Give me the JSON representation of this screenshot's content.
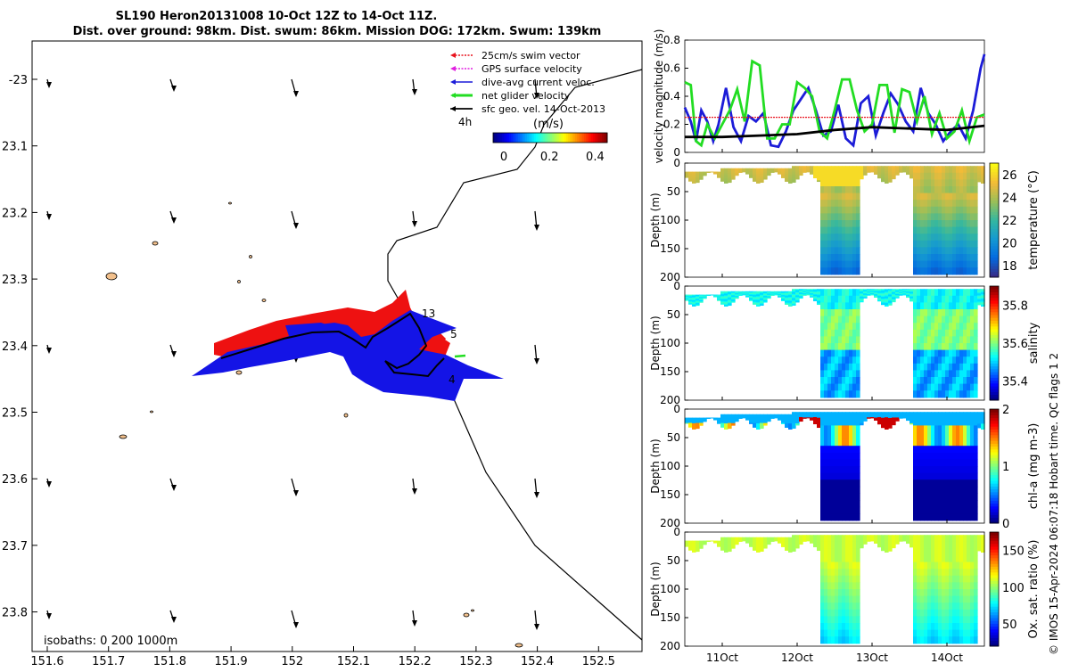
{
  "title_lines": [
    "SL190 Heron20131008 10-Oct 12Z to 14-Oct 11Z.",
    "Dist. over ground: 98km. Dist. swum: 86km. Mission DOG: 172km. Swum: 139km"
  ],
  "side_label": "© IMOS 15-Apr-2024 06:07:18 Hobart time. QC flags 1  2",
  "map": {
    "x_ticks": [
      "151.6",
      "151.7",
      "151.8",
      "151.9",
      "152",
      "152.1",
      "152.2",
      "152.3",
      "152.4",
      "152.5"
    ],
    "y_ticks": [
      "-23",
      "23.1",
      "23.2",
      "23.3",
      "23.4",
      "23.5",
      "23.6",
      "23.7",
      "23.8"
    ],
    "isobath_label": "isobaths: 0   200  1000m",
    "track_day_labels": [
      "13",
      "5",
      "4"
    ],
    "legend": [
      {
        "label": "25cm/s swim vector",
        "color": "#e8141e"
      },
      {
        "label": "GPS surface velocity",
        "color": "#e020e0"
      },
      {
        "label": "dive-avg current veloc.",
        "color": "#1c1cd8"
      },
      {
        "label": "net glider velocity",
        "color": "#22dd22"
      },
      {
        "label": "sfc geo. vel. 14-Oct-2013",
        "color": "#000000"
      }
    ],
    "scale_arrow_label": "4h",
    "colorbar": {
      "label": "(m/s)",
      "ticks": [
        "0",
        "0.2",
        "0.4"
      ],
      "range": [
        0,
        0.5
      ]
    }
  },
  "chart_data": [
    {
      "type": "line",
      "title": "",
      "xlabel": "",
      "ylabel": "velocity magnitude (m/s)",
      "ylim": [
        0,
        0.8
      ],
      "y_ticks": [
        "0",
        "0.2",
        "0.4",
        "0.6",
        "0.8"
      ],
      "x_tick_labels": [
        "11Oct",
        "12Oct",
        "13Oct",
        "14Oct"
      ],
      "xlim_days": [
        10.5,
        14.5
      ],
      "series": [
        {
          "color": "#1c1cd8",
          "x": [
            10.5,
            10.58,
            10.65,
            10.72,
            10.8,
            10.88,
            10.95,
            11.05,
            11.15,
            11.25,
            11.35,
            11.45,
            11.55,
            11.65,
            11.75,
            11.85,
            11.95,
            12.05,
            12.15,
            12.25,
            12.35,
            12.45,
            12.55,
            12.65,
            12.75,
            12.85,
            12.95,
            13.05,
            13.15,
            13.25,
            13.35,
            13.45,
            13.55,
            13.65,
            13.75,
            13.85,
            13.95,
            14.05,
            14.15,
            14.25,
            14.35,
            14.45,
            14.5
          ],
          "y": [
            0.32,
            0.22,
            0.08,
            0.3,
            0.22,
            0.08,
            0.2,
            0.46,
            0.18,
            0.08,
            0.26,
            0.22,
            0.28,
            0.05,
            0.04,
            0.15,
            0.3,
            0.38,
            0.46,
            0.3,
            0.12,
            0.15,
            0.34,
            0.1,
            0.05,
            0.35,
            0.4,
            0.12,
            0.28,
            0.42,
            0.34,
            0.22,
            0.15,
            0.46,
            0.28,
            0.2,
            0.08,
            0.15,
            0.2,
            0.1,
            0.3,
            0.6,
            0.7
          ]
        },
        {
          "color": "#22dd22",
          "x": [
            10.5,
            10.58,
            10.65,
            10.72,
            10.8,
            10.9,
            11.0,
            11.1,
            11.2,
            11.3,
            11.4,
            11.5,
            11.6,
            11.7,
            11.8,
            11.9,
            12.0,
            12.1,
            12.2,
            12.3,
            12.4,
            12.5,
            12.6,
            12.7,
            12.8,
            12.9,
            13.0,
            13.1,
            13.2,
            13.3,
            13.4,
            13.5,
            13.6,
            13.7,
            13.8,
            13.9,
            14.0,
            14.1,
            14.2,
            14.3,
            14.4,
            14.5
          ],
          "y": [
            0.5,
            0.48,
            0.08,
            0.05,
            0.2,
            0.1,
            0.2,
            0.3,
            0.45,
            0.22,
            0.65,
            0.62,
            0.1,
            0.1,
            0.2,
            0.2,
            0.5,
            0.46,
            0.4,
            0.15,
            0.1,
            0.3,
            0.52,
            0.52,
            0.3,
            0.15,
            0.2,
            0.48,
            0.48,
            0.14,
            0.45,
            0.43,
            0.22,
            0.4,
            0.13,
            0.28,
            0.1,
            0.15,
            0.3,
            0.08,
            0.25,
            0.27
          ]
        },
        {
          "color": "#000000",
          "x": [
            10.5,
            11.0,
            11.5,
            12.0,
            12.5,
            13.0,
            13.5,
            14.0,
            14.5
          ],
          "y": [
            0.11,
            0.11,
            0.12,
            0.13,
            0.16,
            0.18,
            0.17,
            0.16,
            0.19
          ]
        },
        {
          "color": "#e8141e",
          "x": [
            10.5,
            14.5
          ],
          "y": [
            0.25,
            0.25
          ]
        }
      ]
    },
    {
      "type": "heatmap",
      "ylabel": "Depth (m)",
      "colorbar_label": "temperature (°C)",
      "colorbar_ticks": [
        "18",
        "20",
        "22",
        "24",
        "26"
      ],
      "clim": [
        17,
        27
      ],
      "ylim": [
        0,
        200
      ],
      "y_ticks": [
        "0",
        "50",
        "100",
        "150",
        "200"
      ],
      "surface_value": 25,
      "deep_value": 18,
      "mixed_layer_value": 23,
      "palette": "parula"
    },
    {
      "type": "heatmap",
      "ylabel": "Depth (m)",
      "colorbar_label": "salinity",
      "colorbar_ticks": [
        "35.4",
        "35.6",
        "35.8"
      ],
      "clim": [
        35.3,
        35.9
      ],
      "ylim": [
        0,
        200
      ],
      "y_ticks": [
        "0",
        "50",
        "100",
        "150",
        "200"
      ],
      "surface_value": 35.55,
      "deep_value": 35.55,
      "mixed_layer_value": 35.55,
      "palette": "jet"
    },
    {
      "type": "heatmap",
      "ylabel": "Depth (m)",
      "colorbar_label": "chl-a (mg m-3)",
      "colorbar_ticks": [
        "0",
        "1",
        "2"
      ],
      "clim": [
        0,
        2
      ],
      "ylim": [
        0,
        200
      ],
      "y_ticks": [
        "0",
        "50",
        "100",
        "150",
        "200"
      ],
      "surface_value": 0.7,
      "deep_value": 0.1,
      "mixed_layer_value": 0.9,
      "palette": "jet"
    },
    {
      "type": "heatmap",
      "ylabel": "Depth (m)",
      "colorbar_label": "Ox. sat. ratio (%)",
      "colorbar_ticks": [
        "50",
        "100",
        "150"
      ],
      "clim": [
        20,
        175
      ],
      "ylim": [
        0,
        200
      ],
      "y_ticks": [
        "0",
        "50",
        "100",
        "150",
        "200"
      ],
      "surface_value": 110,
      "deep_value": 75,
      "mixed_layer_value": 100,
      "palette": "jet",
      "x_tick_labels": [
        "11Oct",
        "12Oct",
        "13Oct",
        "14Oct"
      ]
    }
  ]
}
